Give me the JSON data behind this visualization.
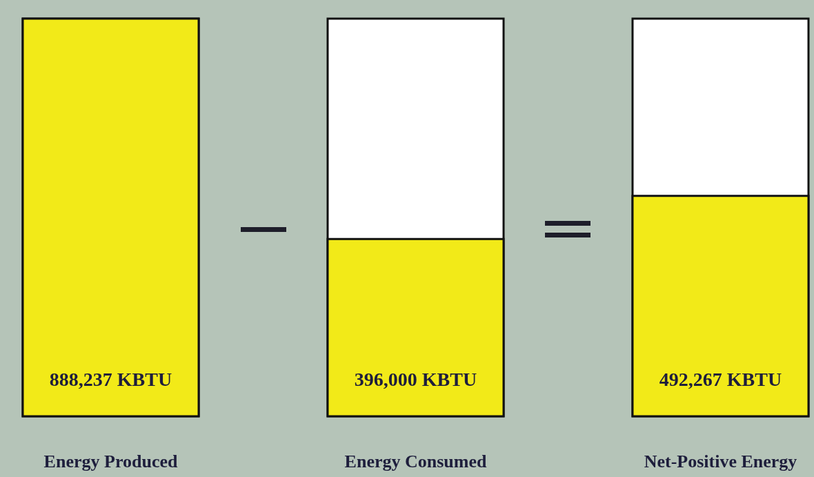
{
  "chart_data": {
    "type": "bar",
    "categories": [
      "Energy Produced",
      "Energy Consumed",
      "Net-Positive Energy"
    ],
    "values": [
      888237,
      396000,
      492267
    ],
    "value_labels": [
      "888,237 KBTU",
      "396,000 KBTU",
      "492,267 KBTU"
    ],
    "color": "#f2ea18",
    "ylim": [
      0,
      888237
    ],
    "tick_labels": "x"
  }
}
